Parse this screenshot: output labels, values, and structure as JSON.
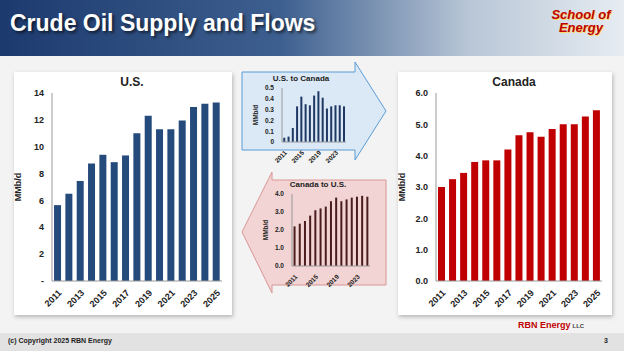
{
  "slide": {
    "title": "Crude Oil Supply and Flows",
    "logo": "School of Energy",
    "brand": "RBN Energy",
    "brand_suffix": "LLC",
    "footer": "(c) Copyright 2025 RBN Energy",
    "page": 3
  },
  "chart_data": [
    {
      "type": "bar",
      "title": "U.S.",
      "y_label": "MMb/d",
      "color": "#254a7c",
      "grid": false,
      "categories": [
        "2011",
        null,
        "2013",
        null,
        "2015",
        null,
        "2017",
        null,
        "2019",
        null,
        "2021",
        null,
        "2023",
        null,
        "2025"
      ],
      "values": [
        5.65,
        6.5,
        7.45,
        8.75,
        9.4,
        8.85,
        9.35,
        11.0,
        12.3,
        11.3,
        11.3,
        11.95,
        12.95,
        13.2,
        13.3
      ],
      "ylim": [
        0,
        14
      ],
      "yticks": [
        {
          "value": 0,
          "label": "-"
        },
        2,
        4,
        6,
        8,
        10,
        12,
        14
      ]
    },
    {
      "type": "bar",
      "title": "U.S. to Canada",
      "y_label": "MMb/d",
      "color": "#1f3864",
      "grid": false,
      "categories": [
        "2011",
        null,
        null,
        null,
        "2015",
        null,
        null,
        null,
        "2019",
        null,
        null,
        null,
        "2023",
        null,
        null
      ],
      "values": [
        0.04,
        0.05,
        0.13,
        0.33,
        0.42,
        0.35,
        0.34,
        0.43,
        0.47,
        0.41,
        0.31,
        0.33,
        0.34,
        0.34,
        0.33
      ],
      "ylim": [
        0,
        0.5
      ],
      "yticks": [
        0,
        0.1,
        0.2,
        0.3,
        0.4,
        0.5
      ]
    },
    {
      "type": "bar",
      "title": "Canada to U.S.",
      "y_label": "MMb/d",
      "color": "#4a1c1c",
      "grid": false,
      "categories": [
        "2011",
        null,
        null,
        null,
        "2015",
        null,
        null,
        null,
        "2019",
        null,
        null,
        null,
        "2023",
        null,
        null
      ],
      "values": [
        2.2,
        2.35,
        2.5,
        2.8,
        3.1,
        3.2,
        3.3,
        3.6,
        3.8,
        3.6,
        3.7,
        3.8,
        3.85,
        3.9,
        3.85
      ],
      "ylim": [
        0,
        4
      ],
      "yticks": [
        {
          "value": 0,
          "label": "0.0"
        },
        {
          "value": 1,
          "label": "1.0"
        },
        {
          "value": 2,
          "label": "2.0"
        },
        {
          "value": 3,
          "label": "3.0"
        },
        {
          "value": 4,
          "label": "4.0"
        }
      ]
    },
    {
      "type": "bar",
      "title": "Canada",
      "y_label": "MMb/d",
      "color": "#c00000",
      "grid": false,
      "categories": [
        "2011",
        null,
        "2013",
        null,
        "2015",
        null,
        "2017",
        null,
        "2019",
        null,
        "2021",
        null,
        "2023",
        null,
        "2025"
      ],
      "values": [
        3.0,
        3.25,
        3.45,
        3.8,
        3.85,
        3.85,
        4.2,
        4.65,
        4.75,
        4.6,
        4.85,
        5.0,
        5.0,
        5.25,
        5.45
      ],
      "ylim": [
        0,
        6
      ],
      "yticks": [
        {
          "value": 0,
          "label": "0.0"
        },
        {
          "value": 1,
          "label": "1.0"
        },
        {
          "value": 2,
          "label": "2.0"
        },
        {
          "value": 3,
          "label": "3.0"
        },
        {
          "value": 4,
          "label": "4.0"
        },
        {
          "value": 5,
          "label": "5.0"
        },
        {
          "value": 6,
          "label": "6.0"
        }
      ]
    }
  ]
}
